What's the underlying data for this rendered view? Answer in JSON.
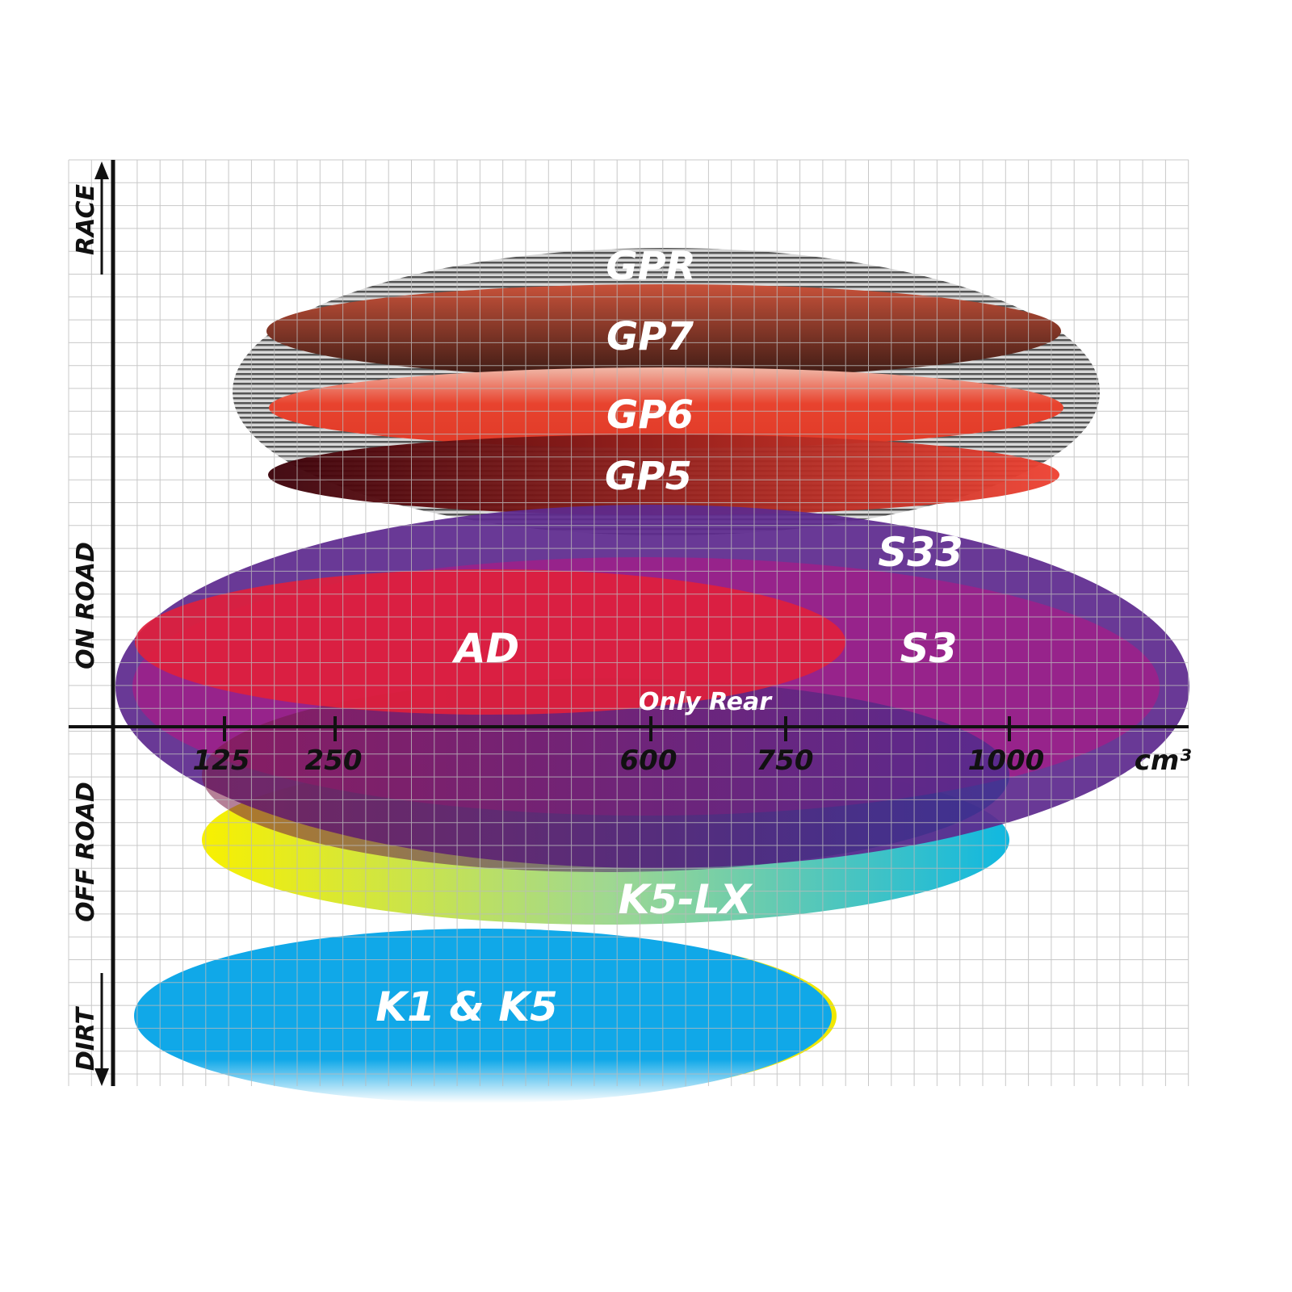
{
  "y_axis_labels": {
    "race": "RACE",
    "on_road": "ON ROAD",
    "off_road": "OFF ROAD",
    "dirt": "DIRT"
  },
  "x_axis": {
    "ticks": [
      "125",
      "250",
      "600",
      "750",
      "1000"
    ],
    "unit": "cm³"
  },
  "products": {
    "gpr": {
      "label": "GPR",
      "color": "#8a8a8a"
    },
    "gp7": {
      "label": "GP7",
      "color": "#a0402a"
    },
    "gp6": {
      "label": "GP6",
      "color": "#e8432e"
    },
    "gp5": {
      "label": "GP5",
      "color": "#7a1010"
    },
    "s33": {
      "label": "S33",
      "color": "#5e2a8e"
    },
    "s3": {
      "label": "S3",
      "color": "#a0208a"
    },
    "ad": {
      "label": "AD",
      "color": "#e0203c"
    },
    "only_rear": {
      "label": "Only Rear",
      "color": "#7a2060"
    },
    "k5lx": {
      "label": "K5-LX",
      "color": "#18b8d8"
    },
    "k1k5": {
      "label": "K1 & K5",
      "color": "#10a8e8"
    }
  }
}
